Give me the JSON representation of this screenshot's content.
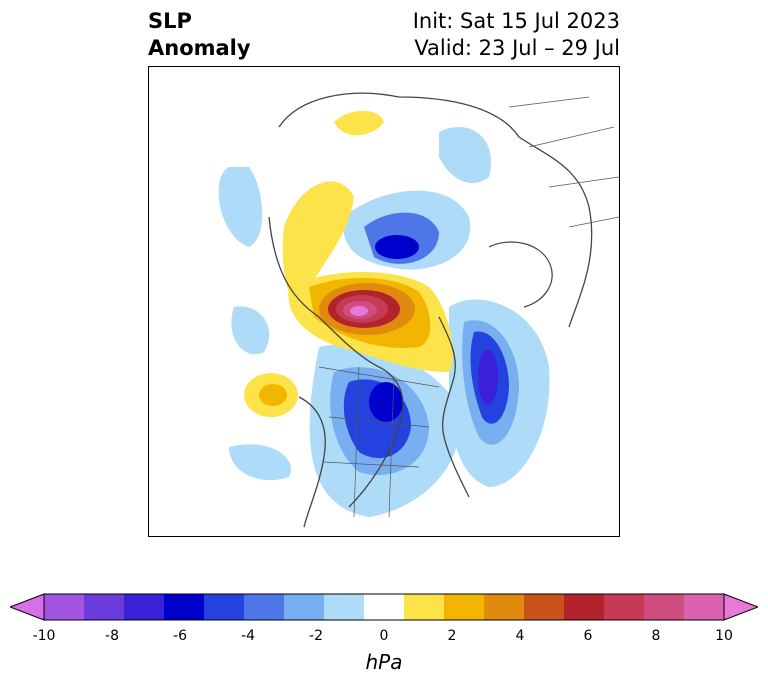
{
  "title": {
    "left_line1": "SLP",
    "left_line2": "Anomaly",
    "init": "Init: Sat 15 Jul 2023",
    "valid": "Valid: 23 Jul – 29 Jul"
  },
  "colorbar": {
    "units": "hPa",
    "ticks": [
      "-10",
      "-8",
      "-6",
      "-4",
      "-2",
      "0",
      "2",
      "4",
      "6",
      "8",
      "10"
    ],
    "colors": [
      "#d66fe8",
      "#a254e0",
      "#6b3bdb",
      "#3a20d6",
      "#0000cc",
      "#2442e0",
      "#4f76e6",
      "#77aff0",
      "#aedcf8",
      "#ffffff",
      "#fde34a",
      "#f2b600",
      "#e08a0e",
      "#c9541b",
      "#b2232b",
      "#c73a55",
      "#d04d80",
      "#db62b0",
      "#e978d8"
    ]
  }
}
